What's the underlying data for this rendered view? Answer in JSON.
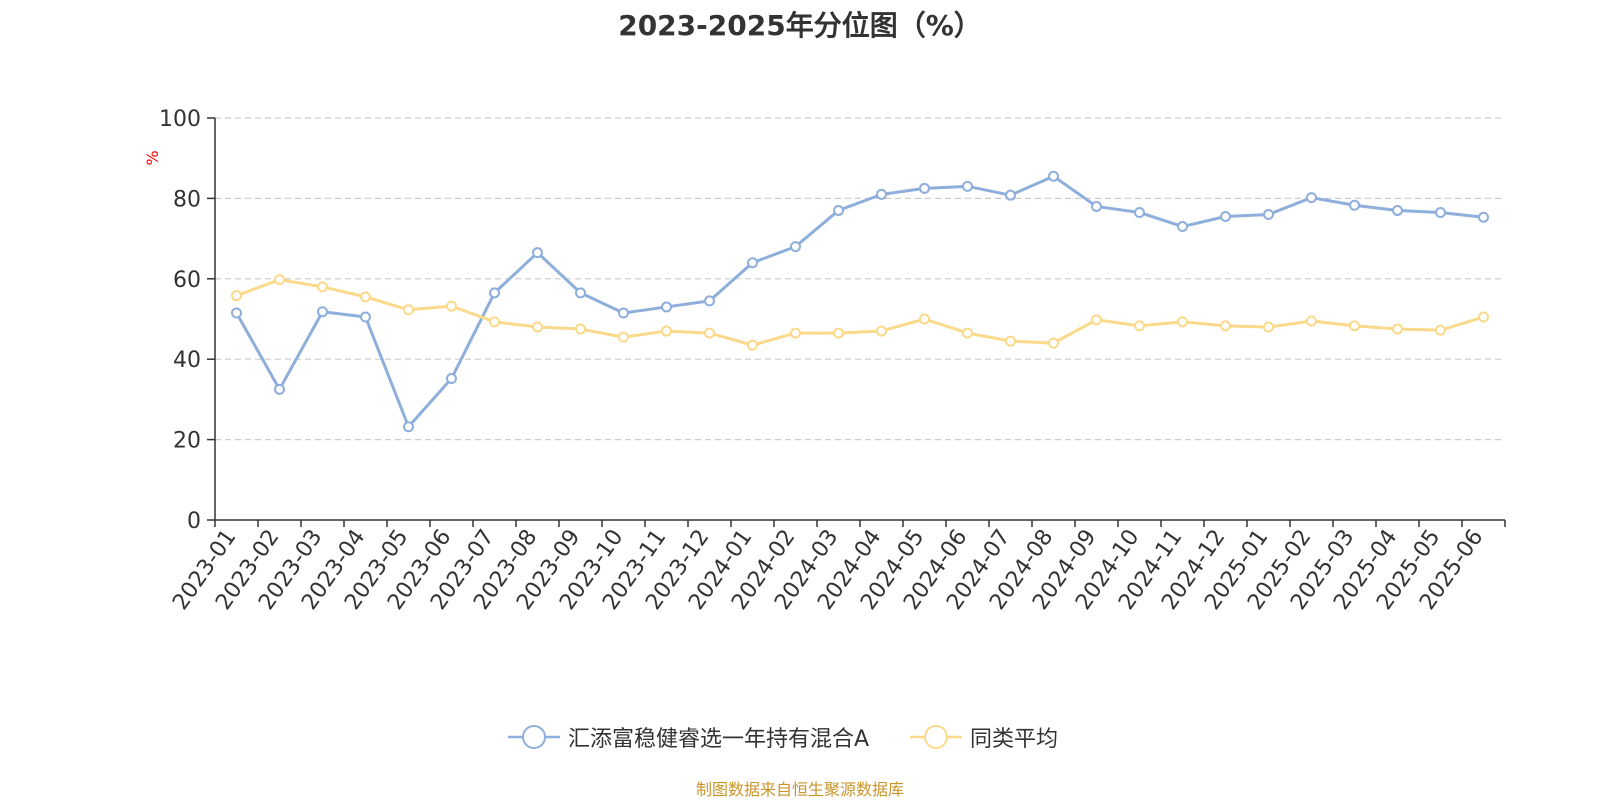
{
  "chart_data": {
    "type": "line",
    "title": "2023-2025年分位图（%）",
    "ylabel": "%",
    "xlabel": "",
    "ylim": [
      0,
      100
    ],
    "yticks": [
      0,
      20,
      40,
      60,
      80,
      100
    ],
    "grid": true,
    "legend_position": "bottom",
    "categories": [
      "2023-01",
      "2023-02",
      "2023-03",
      "2023-04",
      "2023-05",
      "2023-06",
      "2023-07",
      "2023-08",
      "2023-09",
      "2023-10",
      "2023-11",
      "2023-12",
      "2024-01",
      "2024-02",
      "2024-03",
      "2024-04",
      "2024-05",
      "2024-06",
      "2024-07",
      "2024-08",
      "2024-09",
      "2024-10",
      "2024-11",
      "2024-12",
      "2025-01",
      "2025-02",
      "2025-03",
      "2025-04",
      "2025-05",
      "2025-06"
    ],
    "series": [
      {
        "name": "汇添富稳健睿选一年持有混合A",
        "color": "#8eaedb",
        "values": [
          51.5,
          32.5,
          51.8,
          50.5,
          23.2,
          35.2,
          56.5,
          66.5,
          56.5,
          51.5,
          53.0,
          54.5,
          64.0,
          68.0,
          77.0,
          81.0,
          82.5,
          83.0,
          80.8,
          85.5,
          78.0,
          76.5,
          73.0,
          75.5,
          76.0,
          80.2,
          78.3,
          77.0,
          76.5,
          75.3
        ]
      },
      {
        "name": "同类平均",
        "color": "#fbd98b",
        "values": [
          55.8,
          59.8,
          58.0,
          55.5,
          52.3,
          53.2,
          49.3,
          48.0,
          47.5,
          45.5,
          47.0,
          46.5,
          43.5,
          46.5,
          46.5,
          47.0,
          50.0,
          46.5,
          44.5,
          44.0,
          49.8,
          48.3,
          49.3,
          48.3,
          48.0,
          49.5,
          48.3,
          47.5,
          47.2,
          50.5
        ]
      }
    ]
  },
  "source_note": "制图数据来自恒生聚源数据库"
}
